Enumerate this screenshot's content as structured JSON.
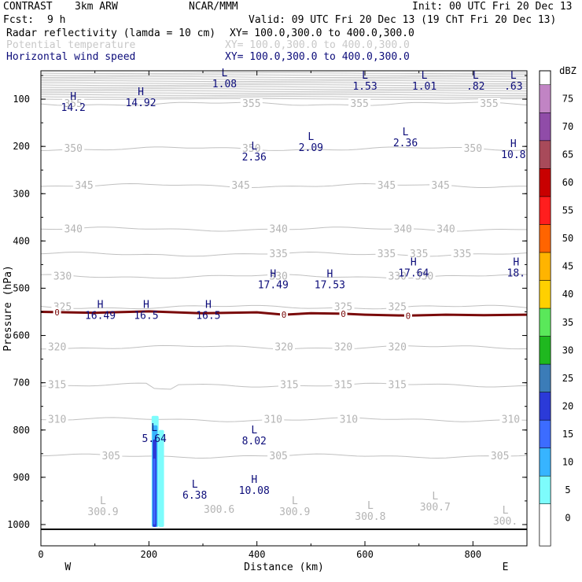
{
  "header": {
    "experiment": "CONTRAST",
    "model": "3km ARW",
    "org": "NCAR/MMM",
    "init": "Init: 00 UTC Fri 20 Dec 13",
    "fcst_label": "Fcst:",
    "fcst_value": "9 h",
    "valid": "Valid: 09 UTC Fri 20 Dec 13 (19 ChT Fri 20 Dec 13)",
    "fields": [
      {
        "name": "Radar reflectivity (lamda = 10 cm)",
        "xy": "XY= 100.0,300.0 to 400.0,300.0",
        "color": "#000000"
      },
      {
        "name": "Potential temperature",
        "xy": "XY= 100.0,300.0 to 400.0,300.0",
        "color": "#c8c8c8"
      },
      {
        "name": "Horizontal wind speed",
        "xy": "XY= 100.0,300.0 to 400.0,300.0",
        "color": "#0c0c7a"
      }
    ]
  },
  "chart_data": {
    "type": "cross-section",
    "xlabel": "Distance (km)",
    "ylabel": "Pressure (hPa)",
    "xlim": [
      0,
      900
    ],
    "ylim": [
      1045,
      40
    ],
    "x_ticks": [
      0,
      200,
      400,
      600,
      800
    ],
    "y_ticks": [
      100,
      200,
      300,
      400,
      500,
      600,
      700,
      800,
      900,
      1000
    ],
    "left_end_label": "W",
    "right_end_label": "E",
    "colorbar": {
      "unit": "dBZ",
      "levels": [
        0,
        5,
        10,
        15,
        20,
        25,
        30,
        35,
        40,
        45,
        50,
        55,
        60,
        65,
        70,
        75
      ],
      "colors": [
        "#ffffff",
        "#7dfcfc",
        "#37b4ff",
        "#3c6cff",
        "#2b3ad8",
        "#3b7cb8",
        "#1fb81f",
        "#5ae85a",
        "#ffd000",
        "#ffb400",
        "#ff6400",
        "#ff1e1e",
        "#c80000",
        "#a84a5a",
        "#904ca8",
        "#c184c4"
      ]
    },
    "theta_contours": [
      {
        "value": 355,
        "p": 110,
        "labels": [
          {
            "x": 60,
            "text": "355"
          },
          {
            "x": 390,
            "text": "355"
          },
          {
            "x": 590,
            "text": "355"
          },
          {
            "x": 830,
            "text": "355"
          }
        ]
      },
      {
        "value": 350,
        "p": 205,
        "labels": [
          {
            "x": 60,
            "text": "350"
          },
          {
            "x": 390,
            "text": "350"
          },
          {
            "x": 800,
            "text": "350"
          }
        ]
      },
      {
        "value": 345,
        "p": 283,
        "labels": [
          {
            "x": 80,
            "text": "345"
          },
          {
            "x": 370,
            "text": "345"
          },
          {
            "x": 640,
            "text": "345"
          },
          {
            "x": 740,
            "text": "345"
          }
        ]
      },
      {
        "value": 340,
        "p": 375,
        "labels": [
          {
            "x": 60,
            "text": "340"
          },
          {
            "x": 440,
            "text": "340"
          },
          {
            "x": 670,
            "text": "340"
          },
          {
            "x": 750,
            "text": "340"
          }
        ]
      },
      {
        "value": 335,
        "p": 428,
        "labels": [
          {
            "x": 440,
            "text": "335"
          },
          {
            "x": 640,
            "text": "335"
          },
          {
            "x": 700,
            "text": "335"
          },
          {
            "x": 780,
            "text": "335"
          }
        ]
      },
      {
        "value": 330,
        "p": 475,
        "labels": [
          {
            "x": 40,
            "text": "330"
          },
          {
            "x": 440,
            "text": "330"
          },
          {
            "x": 660,
            "text": "330"
          },
          {
            "x": 710,
            "text": "330"
          }
        ]
      },
      {
        "value": 325,
        "p": 540,
        "labels": [
          {
            "x": 40,
            "text": "325"
          },
          {
            "x": 560,
            "text": "325"
          },
          {
            "x": 660,
            "text": "325"
          }
        ]
      },
      {
        "value": 320,
        "p": 625,
        "labels": [
          {
            "x": 30,
            "text": "320"
          },
          {
            "x": 450,
            "text": "320"
          },
          {
            "x": 560,
            "text": "320"
          },
          {
            "x": 660,
            "text": "320"
          }
        ]
      },
      {
        "value": 315,
        "p": 705,
        "labels": [
          {
            "x": 30,
            "text": "315"
          },
          {
            "x": 460,
            "text": "315"
          },
          {
            "x": 560,
            "text": "315"
          },
          {
            "x": 660,
            "text": "315"
          }
        ]
      },
      {
        "value": 310,
        "p": 778,
        "labels": [
          {
            "x": 30,
            "text": "310"
          },
          {
            "x": 430,
            "text": "310"
          },
          {
            "x": 570,
            "text": "310"
          },
          {
            "x": 870,
            "text": "310"
          }
        ]
      },
      {
        "value": 305,
        "p": 855,
        "labels": [
          {
            "x": 130,
            "text": "305"
          },
          {
            "x": 440,
            "text": "305"
          },
          {
            "x": 850,
            "text": "305"
          }
        ]
      }
    ],
    "theta_extrema": [
      {
        "x": 115,
        "p": 980,
        "kind": "L",
        "value": "300.9"
      },
      {
        "x": 330,
        "p": 975,
        "kind": "",
        "value": "300.6"
      },
      {
        "x": 470,
        "p": 980,
        "kind": "L",
        "value": "300.9"
      },
      {
        "x": 610,
        "p": 990,
        "kind": "L",
        "value": "300.8"
      },
      {
        "x": 730,
        "p": 970,
        "kind": "L",
        "value": "300.7"
      },
      {
        "x": 860,
        "p": 1000,
        "kind": "L",
        "value": "300."
      }
    ],
    "wind_extrema": [
      {
        "x": 340,
        "p": 75,
        "kind": "L",
        "value": "1.08"
      },
      {
        "x": 600,
        "p": 80,
        "kind": "L",
        "value": "1.53"
      },
      {
        "x": 710,
        "p": 80,
        "kind": "L",
        "value": "1.01"
      },
      {
        "x": 805,
        "p": 80,
        "kind": "L",
        "value": ".82"
      },
      {
        "x": 875,
        "p": 80,
        "kind": "L",
        "value": ".63"
      },
      {
        "x": 60,
        "p": 125,
        "kind": "H",
        "value": "14.2"
      },
      {
        "x": 185,
        "p": 115,
        "kind": "H",
        "value": "14.92"
      },
      {
        "x": 395,
        "p": 230,
        "kind": "L",
        "value": "2.36"
      },
      {
        "x": 500,
        "p": 210,
        "kind": "L",
        "value": "2.09"
      },
      {
        "x": 675,
        "p": 200,
        "kind": "L",
        "value": "2.36"
      },
      {
        "x": 875,
        "p": 225,
        "kind": "H",
        "value": "10.8"
      },
      {
        "x": 430,
        "p": 500,
        "kind": "H",
        "value": "17.49"
      },
      {
        "x": 535,
        "p": 500,
        "kind": "H",
        "value": "17.53"
      },
      {
        "x": 690,
        "p": 475,
        "kind": "H",
        "value": "17.64"
      },
      {
        "x": 880,
        "p": 475,
        "kind": "H",
        "value": "18."
      },
      {
        "x": 110,
        "p": 565,
        "kind": "H",
        "value": "16.49"
      },
      {
        "x": 195,
        "p": 565,
        "kind": "H",
        "value": "16.5"
      },
      {
        "x": 310,
        "p": 565,
        "kind": "H",
        "value": "16.5"
      },
      {
        "x": 210,
        "p": 825,
        "kind": "L",
        "value": "5.64"
      },
      {
        "x": 395,
        "p": 830,
        "kind": "L",
        "value": "8.02"
      },
      {
        "x": 285,
        "p": 945,
        "kind": "L",
        "value": "6.38"
      },
      {
        "x": 395,
        "p": 935,
        "kind": "H",
        "value": "10.08"
      }
    ],
    "zero_line": {
      "label": "0",
      "points": [
        [
          0,
          550
        ],
        [
          100,
          552
        ],
        [
          200,
          549
        ],
        [
          300,
          553
        ],
        [
          400,
          551
        ],
        [
          450,
          556
        ],
        [
          500,
          553
        ],
        [
          560,
          554
        ],
        [
          600,
          556
        ],
        [
          680,
          558
        ],
        [
          750,
          556
        ],
        [
          820,
          557
        ],
        [
          900,
          556
        ]
      ],
      "label_x": [
        30,
        450,
        560,
        680
      ]
    },
    "reflectivity": [
      {
        "x0": 205,
        "x1": 218,
        "p_top": 770,
        "p_bottom": 1005,
        "dbz": 5
      },
      {
        "x0": 218,
        "x1": 228,
        "p_top": 800,
        "p_bottom": 1005,
        "dbz": 5
      },
      {
        "x0": 206,
        "x1": 216,
        "p_top": 790,
        "p_bottom": 1005,
        "dbz": 10
      },
      {
        "x0": 207,
        "x1": 214,
        "p_top": 820,
        "p_bottom": 1005,
        "dbz": 20
      },
      {
        "x0": 208,
        "x1": 212,
        "p_top": 860,
        "p_bottom": 1000,
        "dbz": 15
      }
    ],
    "surface_p": 1010
  }
}
